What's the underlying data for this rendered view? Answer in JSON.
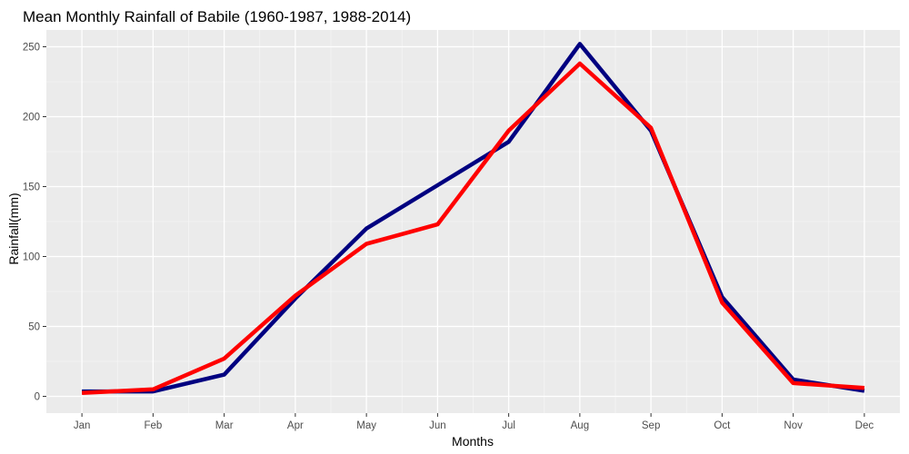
{
  "chart_data": {
    "type": "line",
    "title": "Mean Monthly Rainfall of Babile (1960-1987, 1988-2014)",
    "xlabel": "Months",
    "ylabel": "Rainfall(mm)",
    "categories": [
      "Jan",
      "Feb",
      "Mar",
      "Apr",
      "May",
      "Jun",
      "Jul",
      "Aug",
      "Sep",
      "Oct",
      "Nov",
      "Dec"
    ],
    "ylim": [
      -12,
      262
    ],
    "yticks": [
      0,
      50,
      100,
      150,
      200,
      250
    ],
    "grid": true,
    "legend": "none",
    "series": [
      {
        "color": "#000080",
        "values": [
          3.5,
          3.5,
          15.5,
          70,
          120,
          151,
          182,
          252,
          190,
          71,
          12,
          4
        ]
      },
      {
        "color": "#ff0000",
        "values": [
          2.5,
          5,
          27,
          72,
          109,
          123,
          190,
          238,
          192,
          67,
          9.5,
          6
        ]
      }
    ],
    "colors": {
      "panel_background": "#ebebeb",
      "grid_major": "#ffffff",
      "grid_minor": "#f5f5f5",
      "tick_text": "#4d4d4d"
    }
  }
}
